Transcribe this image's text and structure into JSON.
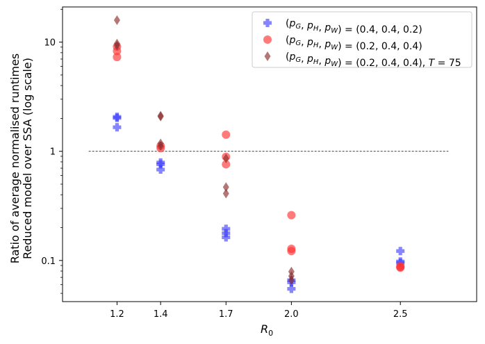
{
  "chart_data": {
    "type": "scatter",
    "title": "",
    "xlabel_main": "R",
    "xlabel_sub": "0",
    "ylabel_line1": "Ratio of average normalised runtimes",
    "ylabel_line2": "Reduced model over SSA (log scale)",
    "yscale": "log",
    "ylim": [
      0.042,
      21
    ],
    "xlim": [
      0.95,
      2.85
    ],
    "x_ticks": [
      1.2,
      1.4,
      1.7,
      2.0,
      2.5
    ],
    "x_tick_labels": [
      "1.2",
      "1.4",
      "1.7",
      "2.0",
      "2.5"
    ],
    "y_ticks": [
      0.1,
      1,
      10
    ],
    "y_tick_labels": [
      "0.1",
      "1",
      "10"
    ],
    "reference_line": {
      "y": 1,
      "x_from": 1.07,
      "x_to": 2.72,
      "style": "dashed"
    },
    "legend_position": "top-right",
    "series": [
      {
        "name": "(pG, pH, pW) = (0.4, 0.4, 0.2)",
        "legend_parts": [
          "(",
          "p",
          "G",
          ", ",
          "p",
          "H",
          ", ",
          "p",
          "W",
          ") = (0.4, 0.4, 0.2)"
        ],
        "marker": "plus",
        "color": "#3333ff",
        "points": [
          {
            "x": 1.2,
            "y": 2.07
          },
          {
            "x": 1.2,
            "y": 2.02
          },
          {
            "x": 1.2,
            "y": 1.66
          },
          {
            "x": 1.4,
            "y": 0.79
          },
          {
            "x": 1.4,
            "y": 0.76
          },
          {
            "x": 1.4,
            "y": 0.68
          },
          {
            "x": 1.7,
            "y": 0.195
          },
          {
            "x": 1.7,
            "y": 0.178
          },
          {
            "x": 1.7,
            "y": 0.163
          },
          {
            "x": 2.0,
            "y": 0.066
          },
          {
            "x": 2.0,
            "y": 0.063
          },
          {
            "x": 2.0,
            "y": 0.055
          },
          {
            "x": 2.5,
            "y": 0.122
          },
          {
            "x": 2.5,
            "y": 0.098
          },
          {
            "x": 2.5,
            "y": 0.095
          }
        ]
      },
      {
        "name": "(pG, pH, pW) = (0.2, 0.4, 0.4)",
        "legend_parts": [
          "(",
          "p",
          "G",
          ", ",
          "p",
          "H",
          ", ",
          "p",
          "W",
          ") = (0.2, 0.4, 0.4)"
        ],
        "marker": "circle",
        "color": "#ff3333",
        "points": [
          {
            "x": 1.2,
            "y": 9.1
          },
          {
            "x": 1.2,
            "y": 8.3
          },
          {
            "x": 1.2,
            "y": 7.3
          },
          {
            "x": 1.4,
            "y": 1.12
          },
          {
            "x": 1.4,
            "y": 1.07
          },
          {
            "x": 1.7,
            "y": 1.42
          },
          {
            "x": 1.7,
            "y": 0.89
          },
          {
            "x": 1.7,
            "y": 0.76
          },
          {
            "x": 2.0,
            "y": 0.26
          },
          {
            "x": 2.0,
            "y": 0.128
          },
          {
            "x": 2.0,
            "y": 0.122
          },
          {
            "x": 2.5,
            "y": 0.089
          },
          {
            "x": 2.5,
            "y": 0.087
          },
          {
            "x": 2.5,
            "y": 0.086
          }
        ]
      },
      {
        "name": "(pG, pH, pW) = (0.2, 0.4, 0.4), T = 75",
        "legend_parts": [
          "(",
          "p",
          "G",
          ", ",
          "p",
          "H",
          ", ",
          "p",
          "W",
          ") = (0.2, 0.4, 0.4), ",
          "T",
          " = 75"
        ],
        "marker": "diamond",
        "color": "#8b2e2e",
        "points": [
          {
            "x": 1.2,
            "y": 15.9
          },
          {
            "x": 1.2,
            "y": 9.7
          },
          {
            "x": 1.2,
            "y": 9.3
          },
          {
            "x": 1.4,
            "y": 2.12
          },
          {
            "x": 1.4,
            "y": 2.08
          },
          {
            "x": 1.4,
            "y": 1.18
          },
          {
            "x": 1.4,
            "y": 1.12
          },
          {
            "x": 1.7,
            "y": 0.86
          },
          {
            "x": 1.7,
            "y": 0.47
          },
          {
            "x": 1.7,
            "y": 0.41
          },
          {
            "x": 2.0,
            "y": 0.079
          },
          {
            "x": 2.0,
            "y": 0.072
          },
          {
            "x": 2.0,
            "y": 0.066
          }
        ]
      }
    ]
  }
}
